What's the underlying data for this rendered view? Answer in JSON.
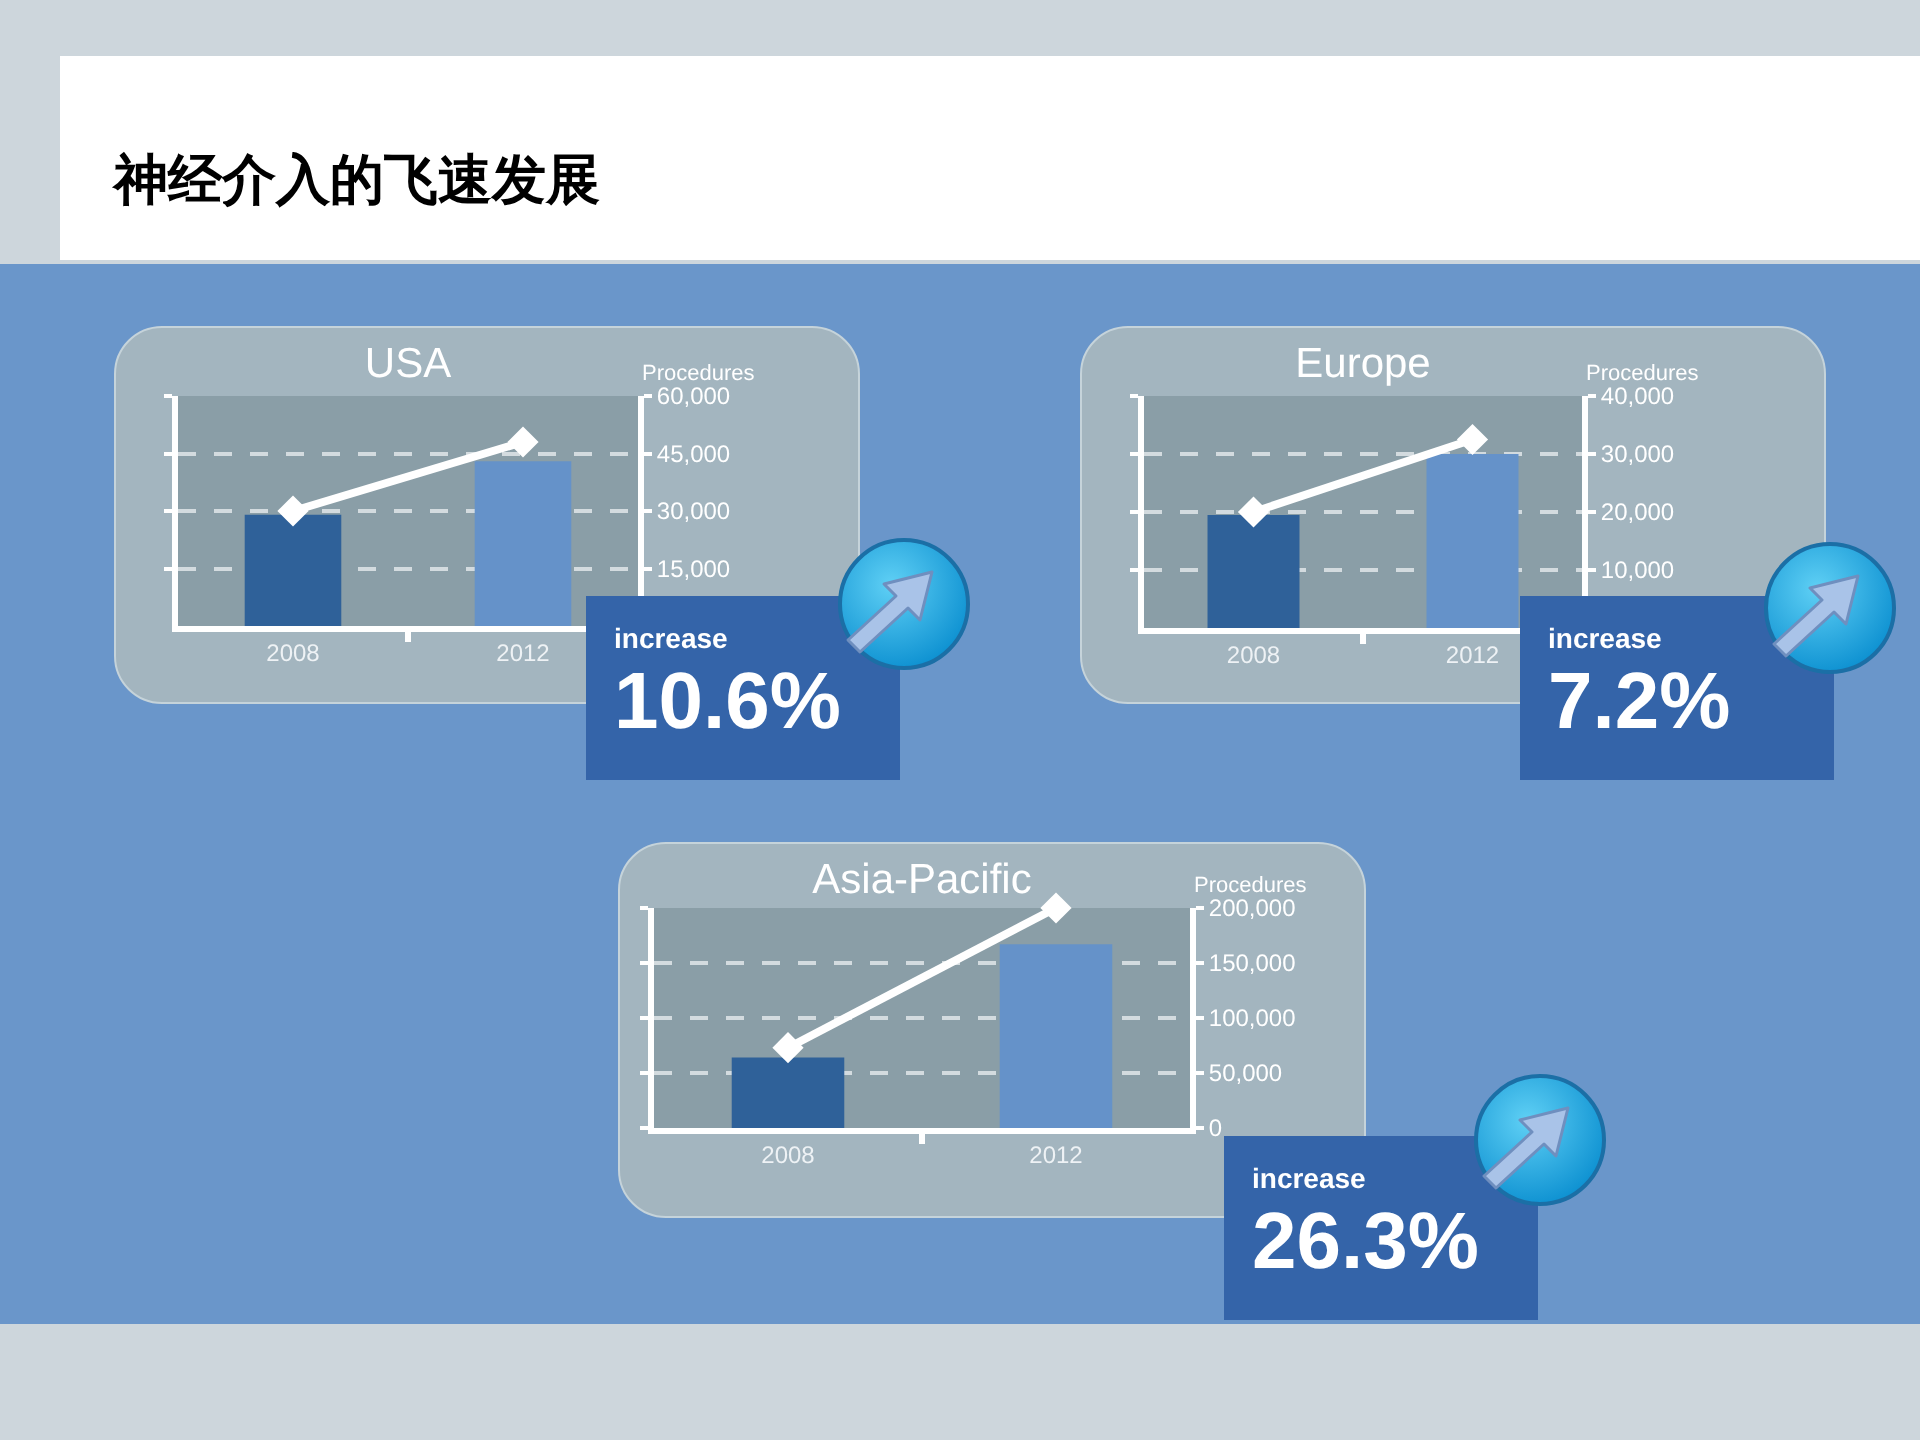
{
  "chart_data": [
    {
      "type": "other",
      "title": "神经介入的飞速发展"
    },
    {
      "type": "bar",
      "title": "USA",
      "ylabel": "Procedures",
      "categories": [
        "2008",
        "2012"
      ],
      "series": [
        {
          "type": "bar",
          "colors": [
            "#2f6199",
            "#6592c9"
          ],
          "values": [
            29000,
            43000
          ]
        },
        {
          "type": "line",
          "color": "#ffffff",
          "values": [
            30000,
            48000
          ]
        }
      ],
      "ylim": [
        0,
        60000
      ],
      "yticks": [
        {
          "value": 15000,
          "label": "15,000"
        },
        {
          "value": 30000,
          "label": "30,000"
        },
        {
          "value": 45000,
          "label": "45,000"
        },
        {
          "value": 60000,
          "label": "60,000"
        }
      ],
      "grid": "y",
      "marker": "diamond",
      "annotations": [
        "increase",
        "10.6%"
      ]
    },
    {
      "type": "bar",
      "title": "Europe",
      "ylabel": "Procedures",
      "categories": [
        "2008",
        "2012"
      ],
      "series": [
        {
          "type": "bar",
          "colors": [
            "#2f6199",
            "#6592c9"
          ],
          "values": [
            19500,
            30000
          ]
        },
        {
          "type": "line",
          "color": "#ffffff",
          "values": [
            20000,
            32500
          ]
        }
      ],
      "ylim": [
        0,
        40000
      ],
      "yticks": [
        {
          "value": 10000,
          "label": "10,000"
        },
        {
          "value": 20000,
          "label": "20,000"
        },
        {
          "value": 30000,
          "label": "30,000"
        },
        {
          "value": 40000,
          "label": "40,000"
        }
      ],
      "grid": "y",
      "marker": "diamond",
      "annotations": [
        "increase",
        "7.2%"
      ]
    },
    {
      "type": "bar",
      "title": "Asia-Pacific",
      "ylabel": "Procedures",
      "categories": [
        "2008",
        "2012"
      ],
      "series": [
        {
          "type": "bar",
          "colors": [
            "#2f6199",
            "#6592c9"
          ],
          "values": [
            64000,
            167000
          ]
        },
        {
          "type": "line",
          "color": "#ffffff",
          "values": [
            73000,
            200000
          ]
        }
      ],
      "ylim": [
        0,
        200000
      ],
      "yticks": [
        0,
        {
          "value": 50000,
          "label": "50,000"
        },
        {
          "value": 100000,
          "label": "100,000"
        },
        {
          "value": 150000,
          "label": "150,000"
        },
        {
          "value": 200000,
          "label": "200,000"
        }
      ],
      "grid": "y",
      "marker": "diamond",
      "annotations": [
        "increase",
        "26.3%"
      ]
    }
  ]
}
